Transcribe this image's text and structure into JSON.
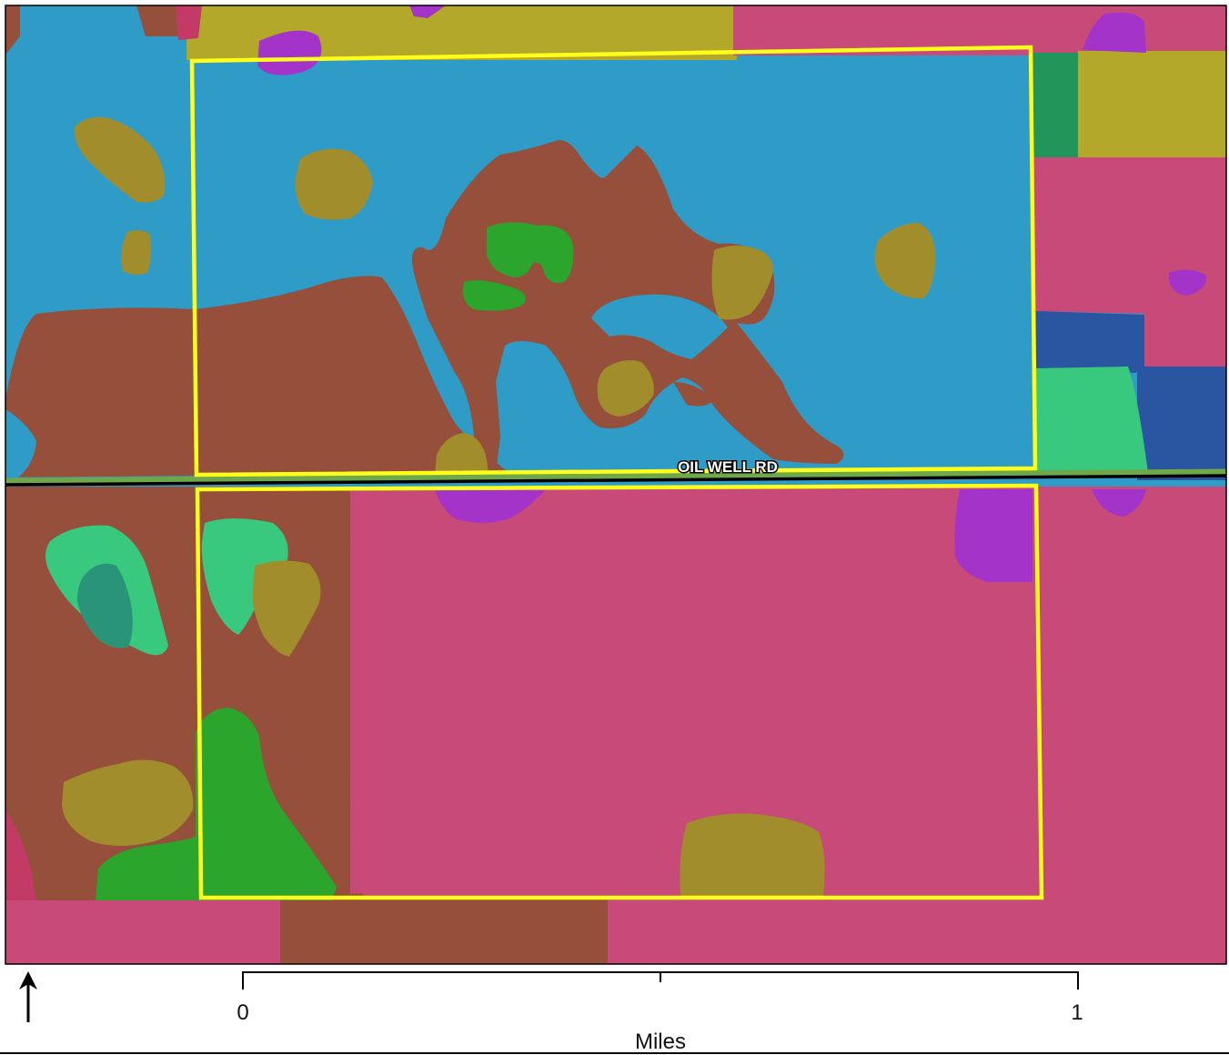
{
  "map": {
    "road_label": "OIL WELL RD",
    "north_arrow_icon": "north-arrow-icon",
    "scale_bar": {
      "start_label": "0",
      "end_label": "1",
      "units_label": "Miles"
    },
    "colors": {
      "water_blue": "#2f9cc8",
      "brown": "#954f3a",
      "olive": "#a28d2c",
      "pink": "#c74a78",
      "mustard": "#b3a82a",
      "green": "#2ba52b",
      "mint": "#38c97f",
      "teal": "#2a9479",
      "purple": "#a433c9",
      "navy": "#2a55a0",
      "dark_green": "#22955a",
      "parcel_outline": "#ffff1a",
      "road": "#000000"
    }
  }
}
